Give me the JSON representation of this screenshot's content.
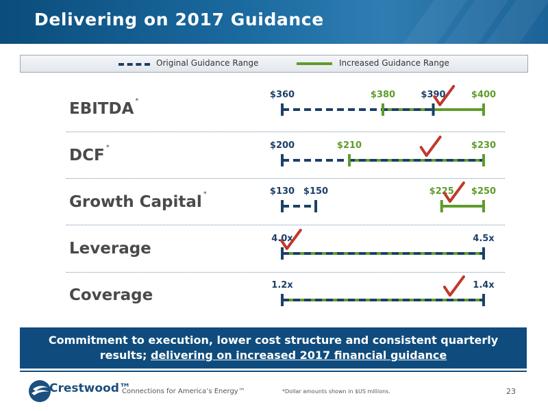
{
  "header": {
    "title": "Delivering on 2017 Guidance"
  },
  "legend": {
    "original_label": "Original Guidance Range",
    "increased_label": "Increased Guidance Range"
  },
  "colors": {
    "original": "#1b4068",
    "increased": "#5e9c2a",
    "check": "#c0392b",
    "header_blue": "#0f4c7d"
  },
  "chart_data": {
    "type": "range",
    "rows": [
      {
        "label": "EBITDA",
        "asterisk": "*",
        "x_min": 360,
        "x_max": 400,
        "original": [
          360,
          390
        ],
        "increased": [
          380,
          400
        ],
        "labels": [
          {
            "value": 360,
            "text": "$360",
            "series": "original"
          },
          {
            "value": 380,
            "text": "$380",
            "series": "increased"
          },
          {
            "value": 390,
            "text": "$390",
            "series": "original"
          },
          {
            "value": 400,
            "text": "$400",
            "series": "increased"
          }
        ],
        "check_at": 392
      },
      {
        "label": "DCF",
        "asterisk": "*",
        "x_min": 200,
        "x_max": 230,
        "original": [
          200,
          230
        ],
        "increased": [
          210,
          230
        ],
        "labels": [
          {
            "value": 200,
            "text": "$200",
            "series": "original"
          },
          {
            "value": 210,
            "text": "$210",
            "series": "increased"
          },
          {
            "value": 230,
            "text": "$230",
            "series": "increased"
          }
        ],
        "check_at": 222
      },
      {
        "label": "Growth Capital",
        "asterisk": "*",
        "x_min": 130,
        "x_max": 250,
        "original": [
          130,
          150
        ],
        "increased": [
          225,
          250
        ],
        "labels": [
          {
            "value": 130,
            "text": "$130",
            "series": "original"
          },
          {
            "value": 150,
            "text": "$150",
            "series": "original"
          },
          {
            "value": 225,
            "text": "$225",
            "series": "increased"
          },
          {
            "value": 250,
            "text": "$250",
            "series": "increased"
          }
        ],
        "check_at": 232
      },
      {
        "label": "Leverage",
        "asterisk": "",
        "x_min": 4.0,
        "x_max": 4.5,
        "original": [
          4.0,
          4.5
        ],
        "increased": [
          4.0,
          4.5
        ],
        "labels": [
          {
            "value": 4.0,
            "text": "4.0x",
            "series": "original"
          },
          {
            "value": 4.5,
            "text": "4.5x",
            "series": "original"
          }
        ],
        "check_at": 4.02
      },
      {
        "label": "Coverage",
        "asterisk": "",
        "x_min": 1.2,
        "x_max": 1.4,
        "original": [
          1.2,
          1.4
        ],
        "increased": [
          1.2,
          1.4
        ],
        "labels": [
          {
            "value": 1.2,
            "text": "1.2x",
            "series": "original"
          },
          {
            "value": 1.4,
            "text": "1.4x",
            "series": "original"
          }
        ],
        "check_at": 1.37
      }
    ]
  },
  "callout": {
    "line1": "Commitment to execution, lower cost structure and consistent quarterly",
    "line2_plain": "results; ",
    "line2_underlined": "delivering on increased 2017 financial guidance"
  },
  "footer": {
    "logo_text": "Crestwood™",
    "tagline": "Connections for America’s Energy™",
    "footnote": "*Dollar amounts shown in $US millions.",
    "page_number": "23"
  }
}
